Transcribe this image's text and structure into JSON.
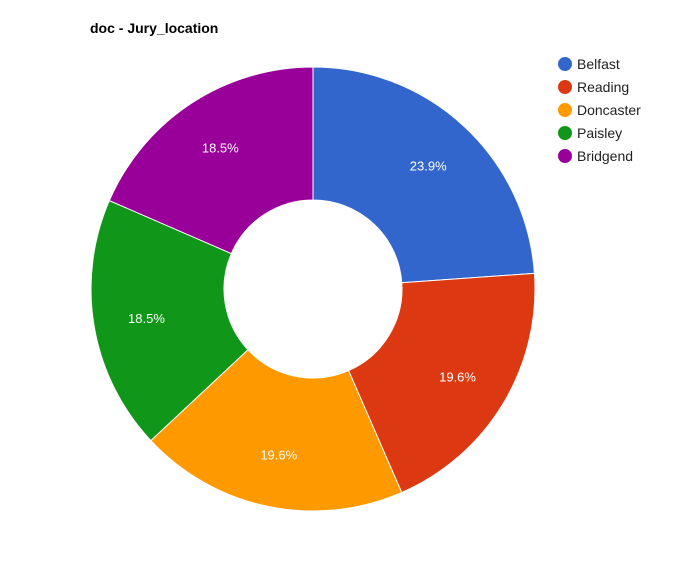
{
  "chart_data": {
    "type": "pie",
    "donut": true,
    "title": "doc - Jury_location",
    "categories": [
      "Belfast",
      "Reading",
      "Doncaster",
      "Paisley",
      "Bridgend"
    ],
    "values": [
      23.9,
      19.6,
      19.6,
      18.5,
      18.5
    ],
    "labels": [
      "23.9%",
      "19.6%",
      "19.6%",
      "18.5%",
      "18.5%"
    ],
    "colors": [
      "#3366cc",
      "#dc3912",
      "#ff9900",
      "#109618",
      "#990099"
    ],
    "legend_position": "right"
  }
}
